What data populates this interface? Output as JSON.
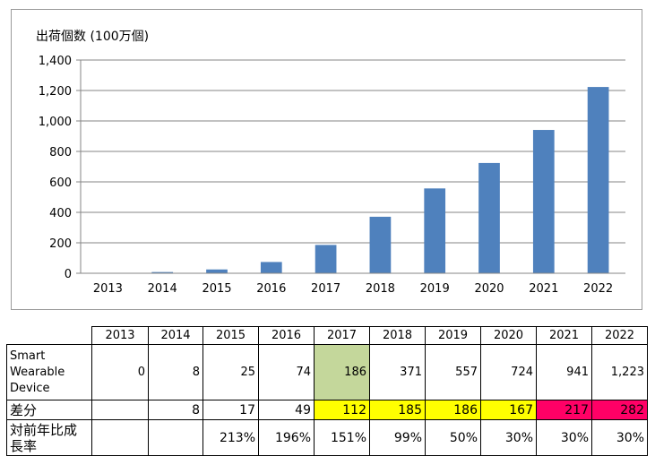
{
  "chart_data": {
    "type": "bar",
    "ylabel": "出荷個数 (100万個)",
    "categories": [
      "2013",
      "2014",
      "2015",
      "2016",
      "2017",
      "2018",
      "2019",
      "2020",
      "2021",
      "2022"
    ],
    "values": [
      0,
      8,
      25,
      74,
      186,
      371,
      557,
      724,
      941,
      1223
    ],
    "ylim": [
      0,
      1400
    ],
    "yticks": [
      0,
      200,
      400,
      600,
      800,
      1000,
      1200,
      1400
    ],
    "ytick_labels": [
      "0",
      "200",
      "400",
      "600",
      "800",
      "1,000",
      "1,200",
      "1,400"
    ],
    "grid": true,
    "bar_color": "#4f81bd"
  },
  "table": {
    "years": [
      "2013",
      "2014",
      "2015",
      "2016",
      "2017",
      "2018",
      "2019",
      "2020",
      "2021",
      "2022"
    ],
    "rows": [
      {
        "label": "Smart Wearable Device",
        "cells": [
          "0",
          "8",
          "25",
          "74",
          "186",
          "371",
          "557",
          "724",
          "941",
          "1,223"
        ],
        "highlights": [
          "",
          "",
          "",
          "",
          "green",
          "",
          "",
          "",
          "",
          ""
        ]
      },
      {
        "label": "差分",
        "cells": [
          "",
          "8",
          "17",
          "49",
          "112",
          "185",
          "186",
          "167",
          "217",
          "282"
        ],
        "highlights": [
          "",
          "",
          "",
          "",
          "yellow",
          "yellow",
          "yellow",
          "yellow",
          "red",
          "red"
        ]
      },
      {
        "label": "対前年比成長率",
        "cells": [
          "",
          "",
          "213%",
          "196%",
          "151%",
          "99%",
          "50%",
          "30%",
          "30%",
          "30%"
        ],
        "highlights": [
          "",
          "",
          "",
          "",
          "",
          "",
          "",
          "",
          "",
          ""
        ]
      }
    ]
  }
}
